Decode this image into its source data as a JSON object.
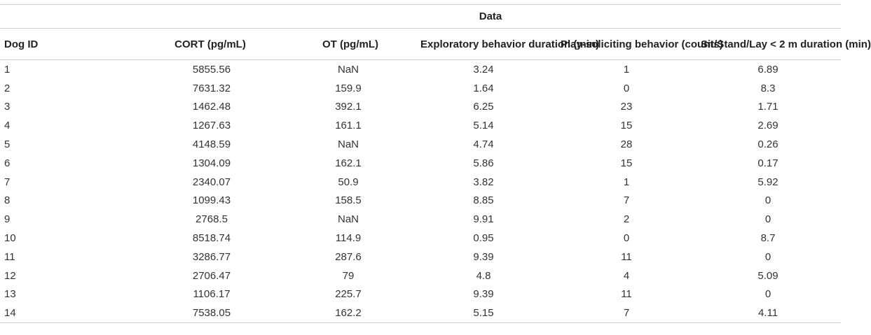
{
  "table": {
    "super_header": "Data",
    "columns": [
      "Dog ID",
      "CORT (pg/mL)",
      "OT (pg/mL)",
      "Exploratory behavior duration (min)",
      "Play-soliciting behavior (counts)",
      "Sit/Stand/Lay < 2 m duration (min)"
    ],
    "rows": [
      [
        "1",
        "5855.56",
        "NaN",
        "3.24",
        "1",
        "6.89"
      ],
      [
        "2",
        "7631.32",
        "159.9",
        "1.64",
        "0",
        "8.3"
      ],
      [
        "3",
        "1462.48",
        "392.1",
        "6.25",
        "23",
        "1.71"
      ],
      [
        "4",
        "1267.63",
        "161.1",
        "5.14",
        "15",
        "2.69"
      ],
      [
        "5",
        "4148.59",
        "NaN",
        "4.74",
        "28",
        "0.26"
      ],
      [
        "6",
        "1304.09",
        "162.1",
        "5.86",
        "15",
        "0.17"
      ],
      [
        "7",
        "2340.07",
        "50.9",
        "3.82",
        "1",
        "5.92"
      ],
      [
        "8",
        "1099.43",
        "158.5",
        "8.85",
        "7",
        "0"
      ],
      [
        "9",
        "2768.5",
        "NaN",
        "9.91",
        "2",
        "0"
      ],
      [
        "10",
        "8518.74",
        "114.9",
        "0.95",
        "0",
        "8.7"
      ],
      [
        "11",
        "3286.77",
        "287.6",
        "9.39",
        "11",
        "0"
      ],
      [
        "12",
        "2706.47",
        "79",
        "4.8",
        "4",
        "5.09"
      ],
      [
        "13",
        "1106.17",
        "225.7",
        "9.39",
        "11",
        "0"
      ],
      [
        "14",
        "7538.05",
        "162.2",
        "5.15",
        "7",
        "4.11"
      ]
    ]
  }
}
